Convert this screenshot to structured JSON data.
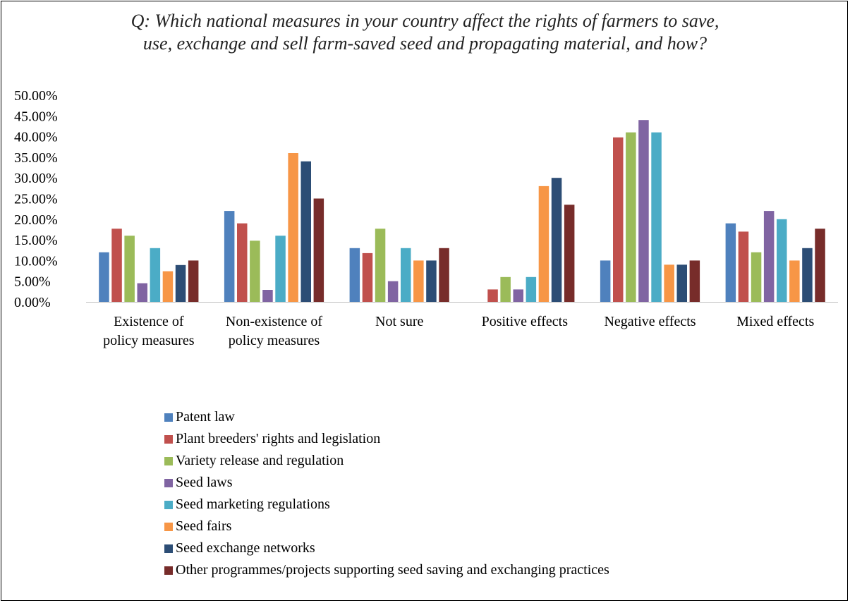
{
  "chart_data": {
    "type": "bar",
    "title_lines": [
      "Q: Which national measures in your country affect the rights of farmers to save,",
      "use, exchange and sell farm-saved seed and propagating material, and how?"
    ],
    "categories": [
      [
        "Existence of",
        "policy measures"
      ],
      [
        "Non-existence of",
        "policy measures"
      ],
      [
        "Not sure"
      ],
      [
        "Positive effects"
      ],
      [
        "Negative effects"
      ],
      [
        "Mixed effects"
      ]
    ],
    "yticks": [
      "0.00%",
      "5.00%",
      "10.00%",
      "15.00%",
      "20.00%",
      "25.00%",
      "30.00%",
      "35.00%",
      "40.00%",
      "45.00%",
      "50.00%"
    ],
    "ylim": [
      0,
      50
    ],
    "legend_position": "bottom",
    "grid": false,
    "series": [
      {
        "name": "Patent law",
        "color": "#4F81BD",
        "values": [
          12,
          22,
          13,
          0,
          10,
          19
        ]
      },
      {
        "name": "Plant breeders' rights and legislation",
        "color": "#C0504D",
        "values": [
          17.7,
          19,
          11.8,
          3,
          39.8,
          17
        ]
      },
      {
        "name": "Variety release and regulation",
        "color": "#9BBB59",
        "values": [
          16,
          14.8,
          17.7,
          6,
          41,
          12
        ]
      },
      {
        "name": "Seed laws",
        "color": "#8064A2",
        "values": [
          4.5,
          2.9,
          5,
          3,
          44,
          22
        ]
      },
      {
        "name": "Seed marketing regulations",
        "color": "#4BACC6",
        "values": [
          13,
          16,
          13,
          6,
          41,
          20
        ]
      },
      {
        "name": "Seed fairs",
        "color": "#F79646",
        "values": [
          7.4,
          36,
          10,
          28,
          9,
          10
        ]
      },
      {
        "name": "Seed exchange networks",
        "color": "#2C4D75",
        "values": [
          8.9,
          34,
          10,
          30,
          9,
          13
        ]
      },
      {
        "name": "Other programmes/projects supporting seed saving and exchanging practices",
        "color": "#772C2A",
        "values": [
          10,
          25,
          13,
          23.5,
          10,
          17.7
        ]
      }
    ]
  }
}
